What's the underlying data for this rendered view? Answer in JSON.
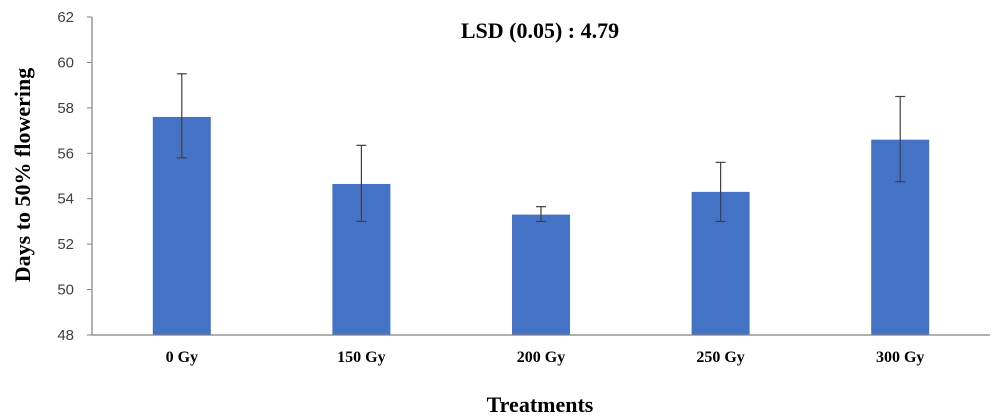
{
  "chart_data": {
    "type": "bar",
    "title": "LSD (0.05) : 4.79",
    "xlabel": "Treatments",
    "ylabel": "Days to 50% flowering",
    "categories": [
      "0 Gy",
      "150 Gy",
      "200 Gy",
      "250 Gy",
      "300 Gy"
    ],
    "values": [
      57.6,
      54.65,
      53.3,
      54.3,
      56.6
    ],
    "error_upper": [
      59.5,
      56.35,
      53.65,
      55.6,
      58.5
    ],
    "error_lower": [
      55.8,
      53.0,
      53.0,
      53.0,
      54.75
    ],
    "ylim": [
      48,
      62
    ],
    "yticks": [
      "48",
      "50",
      "52",
      "54",
      "56",
      "58",
      "60",
      "62"
    ],
    "grid": false,
    "legend": "none",
    "colors": {
      "bar": "#4472C4",
      "error": "#404040",
      "axis": "#808080"
    }
  }
}
